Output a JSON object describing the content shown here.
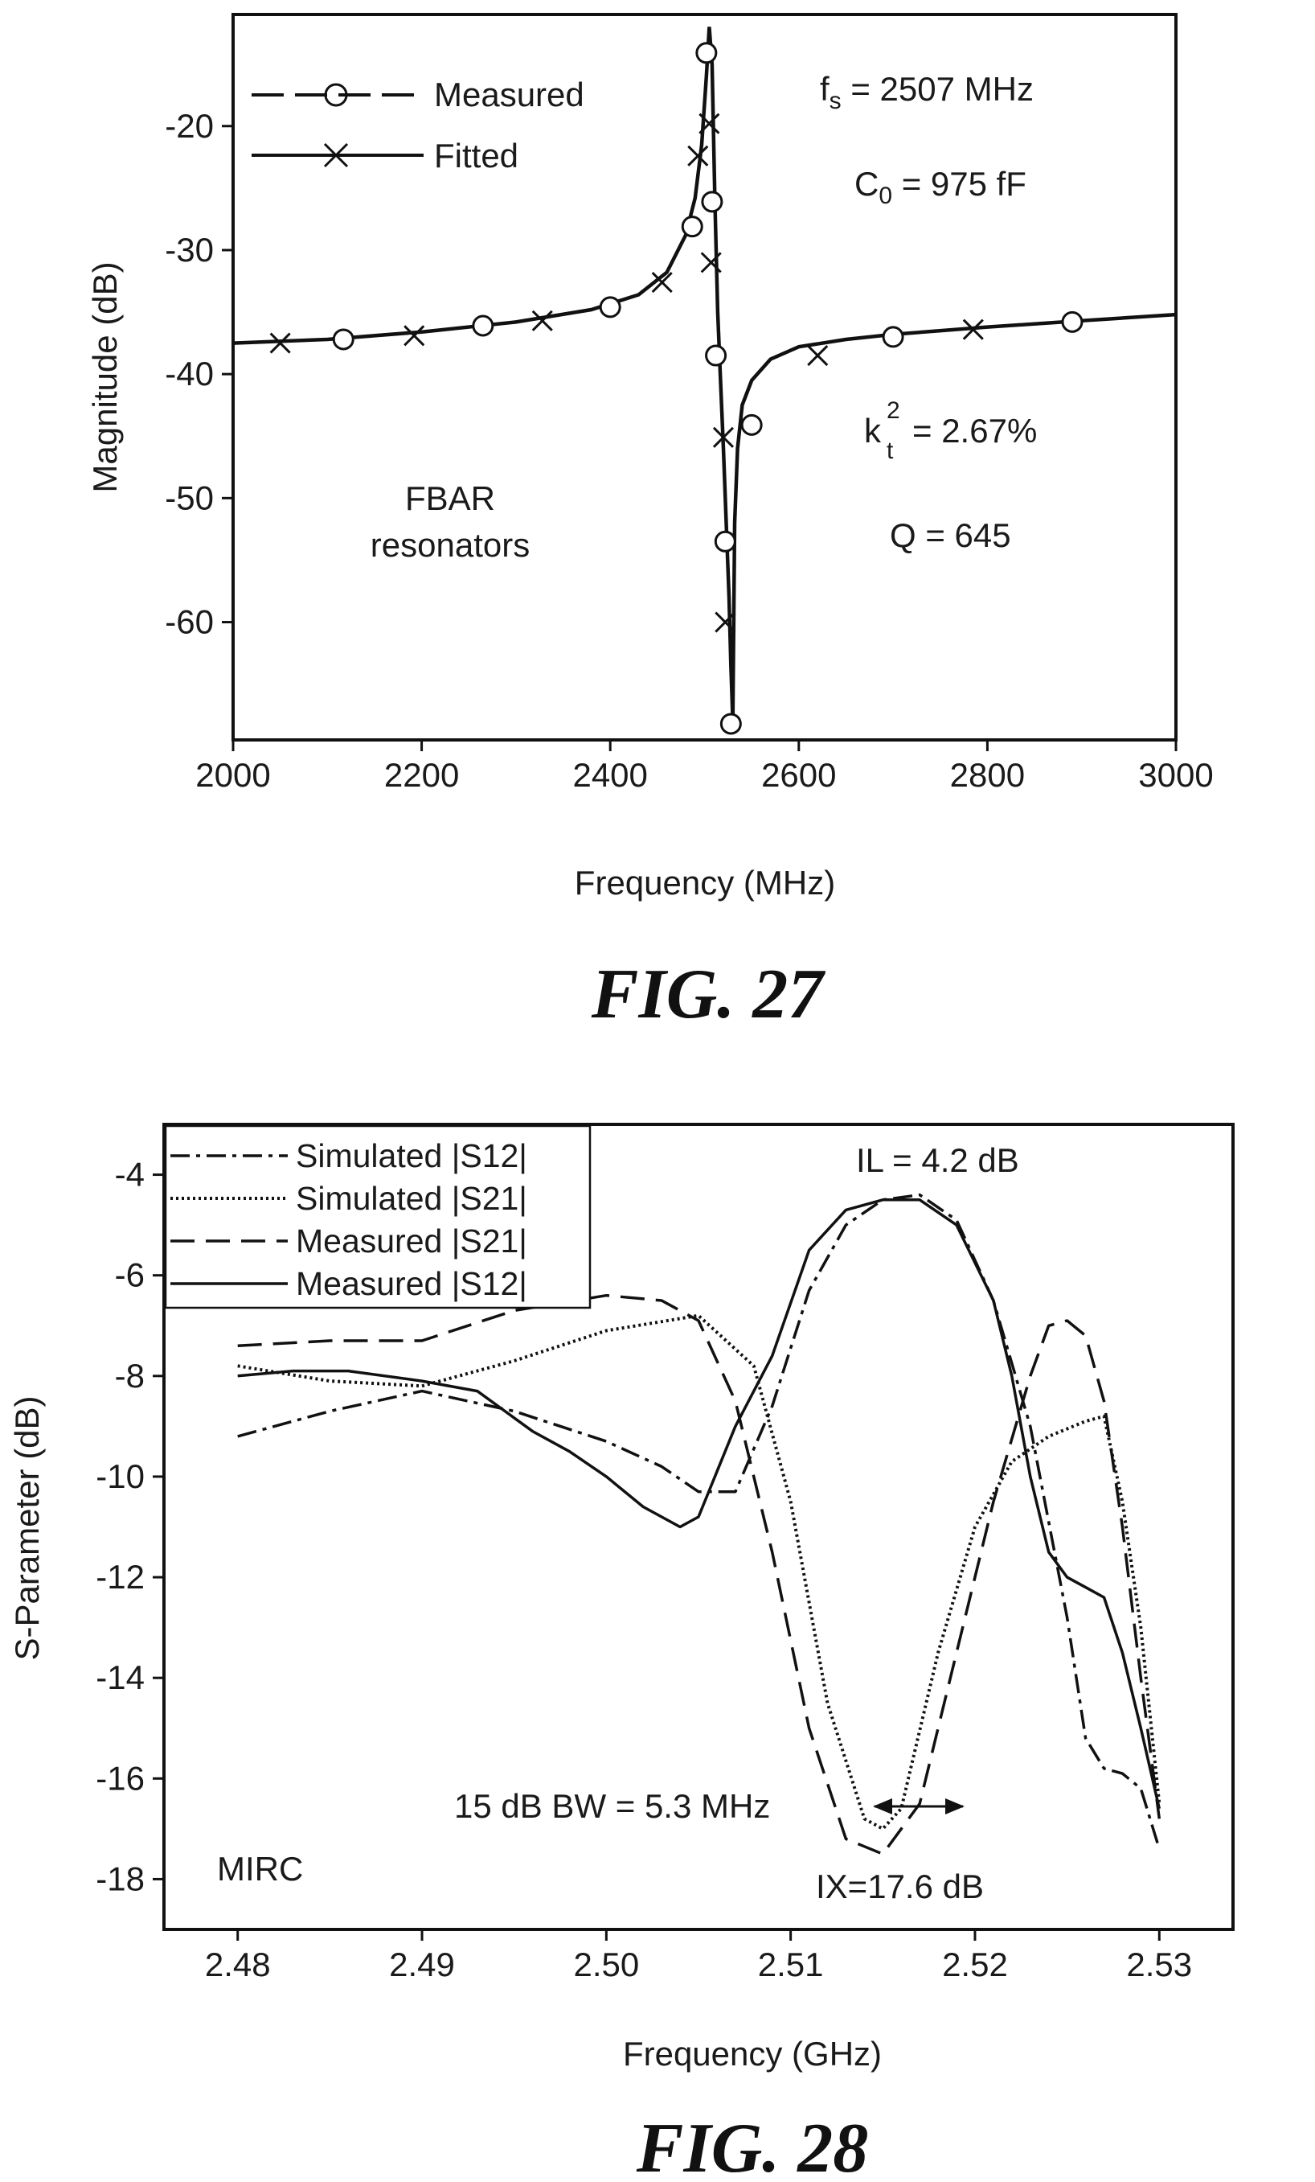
{
  "charts": [
    {
      "chart_data": {
        "type": "line",
        "title": "",
        "xlabel": "Frequency (MHz)",
        "ylabel": "Magnitude (dB)",
        "xlim": [
          2000,
          3000
        ],
        "ylim": [
          -69.5,
          -11
        ],
        "x_ticks": [
          2000,
          2200,
          2400,
          2600,
          2800,
          3000
        ],
        "y_ticks": [
          -20,
          -30,
          -40,
          -50,
          -60
        ],
        "grid": false,
        "legend_position": "top-left",
        "series": [
          {
            "name": "Measured",
            "style": "dashed-circle",
            "x": [
              2000,
              2100,
              2200,
              2300,
              2380,
              2430,
              2460,
              2480,
              2490,
              2497,
              2502,
              2505,
              2508,
              2511,
              2514,
              2517,
              2520,
              2523,
              2526,
              2528,
              2530,
              2532,
              2535,
              2540,
              2550,
              2570,
              2600,
              2650,
              2700,
              2800,
              2900,
              3000
            ],
            "y": [
              -37.5,
              -37.2,
              -36.6,
              -35.8,
              -34.8,
              -33.6,
              -31.8,
              -28.8,
              -25.8,
              -21.5,
              -16,
              -12,
              -15,
              -26,
              -35,
              -40.5,
              -46,
              -52,
              -58,
              -63.5,
              -68,
              -52,
              -46,
              -42.5,
              -40.5,
              -38.8,
              -37.8,
              -37.2,
              -36.8,
              -36.2,
              -35.7,
              -35.2
            ]
          },
          {
            "name": "Fitted",
            "style": "solid-x",
            "x": [
              2000,
              2100,
              2200,
              2300,
              2380,
              2430,
              2460,
              2480,
              2490,
              2497,
              2502,
              2505,
              2508,
              2511,
              2514,
              2517,
              2520,
              2523,
              2526,
              2528,
              2530,
              2532,
              2535,
              2540,
              2550,
              2570,
              2600,
              2650,
              2700,
              2800,
              2900,
              3000
            ],
            "y": [
              -37.5,
              -37.2,
              -36.6,
              -35.8,
              -34.8,
              -33.6,
              -31.8,
              -28.8,
              -25.8,
              -21.5,
              -16,
              -12,
              -15,
              -26,
              -35,
              -40.5,
              -46,
              -52,
              -58,
              -63.5,
              -68,
              -52,
              -46,
              -42.5,
              -40.5,
              -38.8,
              -37.8,
              -37.2,
              -36.8,
              -36.2,
              -35.7,
              -35.2
            ]
          }
        ],
        "measured_markers": [
          [
            2117,
            -37.2
          ],
          [
            2265,
            -36.1
          ],
          [
            2400,
            -34.6
          ],
          [
            2487,
            -28.1
          ],
          [
            2502,
            -14.1
          ],
          [
            2508,
            -26.1
          ],
          [
            2512,
            -38.5
          ],
          [
            2522,
            -53.5
          ],
          [
            2528,
            -68.2
          ],
          [
            2550,
            -44.1
          ],
          [
            2700,
            -37.0
          ],
          [
            2890,
            -35.8
          ]
        ],
        "fitted_markers": [
          [
            2050,
            -37.5
          ],
          [
            2192,
            -36.9
          ],
          [
            2328,
            -35.7
          ],
          [
            2455,
            -32.6
          ],
          [
            2493,
            -22.4
          ],
          [
            2505,
            -19.8
          ],
          [
            2507,
            -31.0
          ],
          [
            2520,
            -45.1
          ],
          [
            2522,
            -60.0
          ],
          [
            2620,
            -38.5
          ],
          [
            2785,
            -36.4
          ]
        ],
        "annotations": {
          "fs_label": "f",
          "fs_sub": "s",
          "fs_value": " = 2507 MHz",
          "c0_label": "C",
          "c0_sub": "0",
          "c0_value": " = 975 fF",
          "kt_label": "k",
          "kt_sup": "2",
          "kt_sub": "t",
          "kt_value": "= 2.67%",
          "q": "Q = 645",
          "fbar_line1": "FBAR",
          "fbar_line2": "resonators"
        }
      },
      "figure_label": "FIG. 27"
    },
    {
      "chart_data": {
        "type": "line",
        "title": "",
        "xlabel": "Frequency (GHz)",
        "ylabel": "S-Parameter (dB)",
        "xlim": [
          2.476,
          2.534
        ],
        "ylim": [
          -19.0,
          -3.0
        ],
        "x_ticks": [
          2.48,
          2.49,
          2.5,
          2.51,
          2.52,
          2.53
        ],
        "x_tick_labels": [
          "2.48",
          "2.49",
          "2.50",
          "2.51",
          "2.52",
          "2.53"
        ],
        "y_ticks": [
          -4,
          -6,
          -8,
          -10,
          -12,
          -14,
          -16,
          -18
        ],
        "grid": false,
        "legend_position": "top-left",
        "series": [
          {
            "name": "Simulated |S12|",
            "style": "dash-dot",
            "x": [
              2.48,
              2.485,
              2.49,
              2.495,
              2.5,
              2.503,
              2.505,
              2.507,
              2.509,
              2.511,
              2.513,
              2.515,
              2.517,
              2.519,
              2.521,
              2.523,
              2.525,
              2.526,
              2.527,
              2.528,
              2.529,
              2.53
            ],
            "y": [
              -9.2,
              -8.7,
              -8.3,
              -8.7,
              -9.3,
              -9.8,
              -10.3,
              -10.3,
              -8.6,
              -6.3,
              -5.0,
              -4.5,
              -4.4,
              -4.9,
              -6.5,
              -9.0,
              -12.8,
              -15.2,
              -15.8,
              -15.9,
              -16.2,
              -17.4
            ]
          },
          {
            "name": "Simulated |S21|",
            "style": "dotted",
            "x": [
              2.48,
              2.485,
              2.49,
              2.495,
              2.5,
              2.505,
              2.508,
              2.51,
              2.512,
              2.514,
              2.515,
              2.516,
              2.518,
              2.52,
              2.522,
              2.524,
              2.526,
              2.527,
              2.528,
              2.529,
              2.53
            ],
            "y": [
              -7.8,
              -8.1,
              -8.2,
              -7.7,
              -7.1,
              -6.8,
              -7.8,
              -10.5,
              -14.5,
              -16.8,
              -17.0,
              -16.6,
              -13.5,
              -11.0,
              -9.7,
              -9.2,
              -8.9,
              -8.8,
              -10.5,
              -13.0,
              -16.5
            ]
          },
          {
            "name": "Measured |S21|",
            "style": "dashed",
            "x": [
              2.48,
              2.485,
              2.49,
              2.495,
              2.5,
              2.503,
              2.505,
              2.507,
              2.509,
              2.511,
              2.513,
              2.515,
              2.517,
              2.519,
              2.521,
              2.523,
              2.524,
              2.525,
              2.526,
              2.527,
              2.528,
              2.529,
              2.53
            ],
            "y": [
              -7.4,
              -7.3,
              -7.3,
              -6.7,
              -6.4,
              -6.5,
              -6.9,
              -8.5,
              -11.5,
              -15.0,
              -17.2,
              -17.5,
              -16.5,
              -13.5,
              -10.5,
              -8.0,
              -7.0,
              -6.9,
              -7.2,
              -8.5,
              -11.0,
              -14.0,
              -16.8
            ]
          },
          {
            "name": "Measured |S12|",
            "style": "solid",
            "x": [
              2.48,
              2.483,
              2.486,
              2.49,
              2.493,
              2.496,
              2.498,
              2.5,
              2.502,
              2.504,
              2.505,
              2.507,
              2.509,
              2.511,
              2.513,
              2.515,
              2.517,
              2.519,
              2.521,
              2.522,
              2.523,
              2.524,
              2.525,
              2.526,
              2.527,
              2.528,
              2.529,
              2.53
            ],
            "y": [
              -8.0,
              -7.9,
              -7.9,
              -8.1,
              -8.3,
              -9.1,
              -9.5,
              -10.0,
              -10.6,
              -11.0,
              -10.8,
              -9.0,
              -7.6,
              -5.5,
              -4.7,
              -4.5,
              -4.5,
              -5.0,
              -6.5,
              -8.0,
              -10.0,
              -11.5,
              -12.0,
              -12.2,
              -12.4,
              -13.5,
              -15.0,
              -16.6
            ]
          }
        ],
        "annotations": {
          "il": "IL = 4.2 dB",
          "bw": "15 dB BW = 5.3 MHz",
          "ix": "IX=17.6 dB",
          "mirc": "MIRC"
        }
      },
      "figure_label": "FIG. 28"
    }
  ]
}
